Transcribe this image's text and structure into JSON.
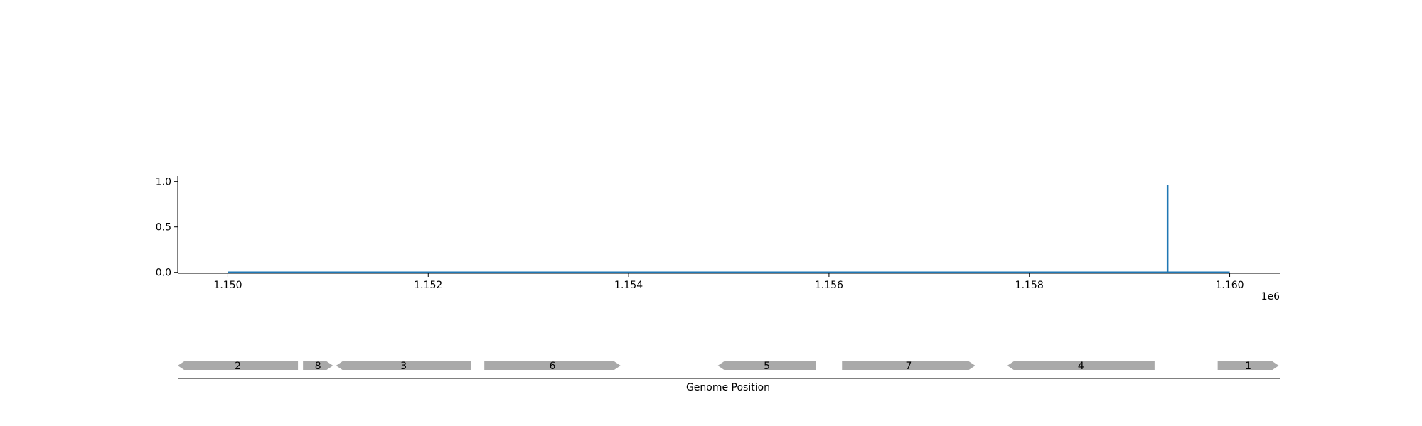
{
  "chart_data": [
    {
      "type": "line",
      "x_scale_label": "1e6",
      "x_ticks": [
        1.15,
        1.152,
        1.154,
        1.156,
        1.158,
        1.16
      ],
      "x_tick_labels": [
        "1.150",
        "1.152",
        "1.154",
        "1.156",
        "1.158",
        "1.160"
      ],
      "y_ticks": [
        0.0,
        0.5,
        1.0
      ],
      "y_tick_labels": [
        "0.0",
        "0.5",
        "1.0"
      ],
      "xlim": [
        1149500,
        1160500
      ],
      "ylim": [
        -0.01,
        1.06
      ],
      "grid": false,
      "series": [
        {
          "color": "#1f77b4",
          "x": [
            1150000,
            1159380,
            1159380,
            1159380,
            1159380,
            1160000
          ],
          "y": [
            0,
            0,
            0,
            0.96,
            0,
            0
          ]
        }
      ]
    },
    {
      "type": "gene_track",
      "xlabel": "Genome Position",
      "xlim": [
        1149500,
        1160500
      ],
      "gene_color": "#a9a9a9",
      "genes": [
        {
          "label": "2",
          "start": 1149500,
          "end": 1150700,
          "strand": "-"
        },
        {
          "label": "8",
          "start": 1150750,
          "end": 1151050,
          "strand": "+"
        },
        {
          "label": "3",
          "start": 1151080,
          "end": 1152430,
          "strand": "-"
        },
        {
          "label": "6",
          "start": 1152560,
          "end": 1153920,
          "strand": "+"
        },
        {
          "label": "5",
          "start": 1154890,
          "end": 1155870,
          "strand": "-"
        },
        {
          "label": "7",
          "start": 1156130,
          "end": 1157460,
          "strand": "+"
        },
        {
          "label": "4",
          "start": 1157780,
          "end": 1159250,
          "strand": "-"
        },
        {
          "label": "1",
          "start": 1159880,
          "end": 1160490,
          "strand": "+"
        }
      ]
    }
  ]
}
